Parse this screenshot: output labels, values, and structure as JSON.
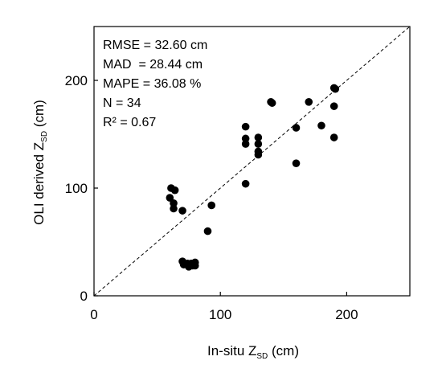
{
  "chart_data": {
    "type": "scatter",
    "title": "",
    "xlabel": {
      "main": "In-situ Z",
      "sub": "SD",
      "unit": " (cm)"
    },
    "ylabel": {
      "main": "OLI derived Z",
      "sub": "SD",
      "unit": " (cm)"
    },
    "xlim": [
      0,
      250
    ],
    "ylim": [
      0,
      250
    ],
    "xticks": [
      0,
      100,
      200
    ],
    "yticks": [
      0,
      100,
      200
    ],
    "grid": false,
    "reference_line": {
      "type": "1:1",
      "style": "dashed"
    },
    "stats": [
      "RMSE = 32.60 cm",
      "MAD  = 28.44 cm",
      "MAPE = 36.08 %",
      "N = 34",
      "R² = 0.67"
    ],
    "points": [
      [
        60,
        91
      ],
      [
        61,
        100
      ],
      [
        64,
        98
      ],
      [
        63,
        86
      ],
      [
        63,
        81
      ],
      [
        70,
        79
      ],
      [
        70,
        32
      ],
      [
        71,
        29
      ],
      [
        74,
        30
      ],
      [
        75,
        27
      ],
      [
        77,
        30
      ],
      [
        78,
        28
      ],
      [
        80,
        31
      ],
      [
        80,
        28
      ],
      [
        90,
        60
      ],
      [
        93,
        84
      ],
      [
        120,
        157
      ],
      [
        120,
        146
      ],
      [
        120,
        141
      ],
      [
        120,
        104
      ],
      [
        130,
        147
      ],
      [
        130,
        141
      ],
      [
        130,
        134
      ],
      [
        130,
        131
      ],
      [
        140,
        180
      ],
      [
        160,
        156
      ],
      [
        160,
        123
      ],
      [
        170,
        180
      ],
      [
        180,
        158
      ],
      [
        190,
        193
      ],
      [
        190,
        176
      ],
      [
        190,
        147
      ],
      [
        191,
        192
      ],
      [
        141,
        179
      ]
    ],
    "marker_color": "#000000"
  }
}
